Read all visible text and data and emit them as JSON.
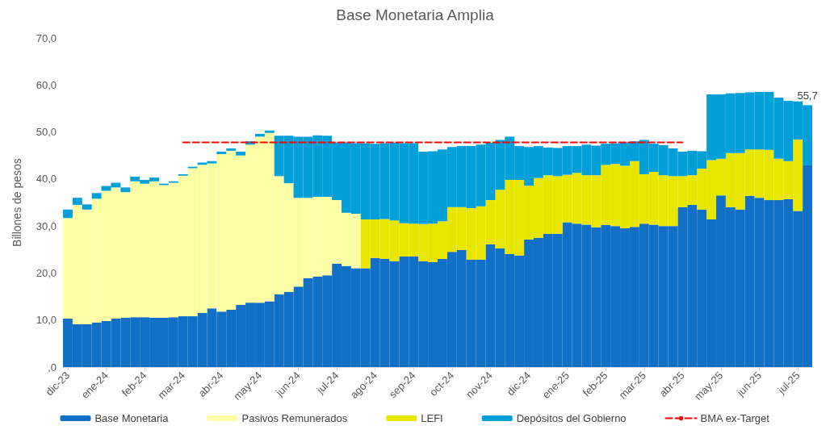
{
  "chart_data": {
    "type": "bar",
    "stacked": true,
    "title": "Base Monetaria Amplia",
    "ylabel": "Billones de pesos",
    "categories": [
      "dic-23",
      null,
      null,
      null,
      "ene-24",
      null,
      null,
      null,
      "feb-24",
      null,
      null,
      null,
      "mar-24",
      null,
      null,
      null,
      "abr-24",
      null,
      null,
      null,
      "may-24",
      null,
      null,
      null,
      "jun-24",
      null,
      null,
      null,
      "jul-24",
      null,
      null,
      null,
      "ago-24",
      null,
      null,
      null,
      "sep-24",
      null,
      null,
      null,
      "oct-24",
      null,
      null,
      null,
      "nov-24",
      null,
      null,
      null,
      "dic-24",
      null,
      null,
      null,
      "ene-25",
      null,
      null,
      null,
      "feb-25",
      null,
      null,
      null,
      "mar-25",
      null,
      null,
      null,
      "abr-25",
      null,
      null,
      null,
      "may-25",
      null,
      null,
      null,
      "jun-25",
      null,
      null,
      null,
      "jul-25",
      null
    ],
    "series": [
      {
        "name": "Base Monetaria",
        "color": "#1170c5",
        "values": [
          10.3,
          9.1,
          9.1,
          9.5,
          9.8,
          10.3,
          10.5,
          10.6,
          10.6,
          10.5,
          10.5,
          10.6,
          10.8,
          10.8,
          11.5,
          12.5,
          11.8,
          12.2,
          13.2,
          13.7,
          13.7,
          14.0,
          15.5,
          16.0,
          17.1,
          18.9,
          19.2,
          19.5,
          22.0,
          21.5,
          21.0,
          21.0,
          23.2,
          23.0,
          22.5,
          23.5,
          23.5,
          22.5,
          22.3,
          23.0,
          24.5,
          24.9,
          22.8,
          22.8,
          26.1,
          25.2,
          24.0,
          23.7,
          27.1,
          27.5,
          28.3,
          28.3,
          30.8,
          30.5,
          30.3,
          29.7,
          30.2,
          30.0,
          29.5,
          29.8,
          30.5,
          30.3,
          30.0,
          30.0,
          34.0,
          34.5,
          33.5,
          31.4,
          36.5,
          34.0,
          33.5,
          36.4,
          36.0,
          35.5,
          35.5,
          35.7,
          33.2,
          42.9
        ]
      },
      {
        "name": "Pasivos Remunerados",
        "color": "#fdfda6",
        "values": [
          21.4,
          25.4,
          24.4,
          26.3,
          27.7,
          27.9,
          26.7,
          28.9,
          28.4,
          29.0,
          28.2,
          28.6,
          29.9,
          31.5,
          31.5,
          30.8,
          33.5,
          33.8,
          31.8,
          33.6,
          35.3,
          35.8,
          25.1,
          23.1,
          18.9,
          17.1,
          17.0,
          16.7,
          13.5,
          11.3,
          11.6,
          0,
          0,
          0,
          0,
          0,
          0,
          0,
          0,
          0,
          0,
          0,
          0,
          0,
          0,
          0,
          0,
          0,
          0,
          0,
          0,
          0,
          0,
          0,
          0,
          0,
          0,
          0,
          0,
          0,
          0,
          0,
          0,
          0,
          0,
          0,
          0,
          0,
          0,
          0,
          0,
          0,
          0,
          0,
          0,
          0,
          0,
          0
        ]
      },
      {
        "name": "LEFI",
        "color": "#e8e600",
        "values": [
          0,
          0,
          0,
          0,
          0,
          0,
          0,
          0,
          0,
          0,
          0,
          0,
          0,
          0,
          0,
          0,
          0,
          0,
          0,
          0,
          0,
          0,
          0,
          0,
          0,
          0,
          0,
          0,
          0,
          0,
          0,
          10.4,
          8.2,
          8.5,
          8.7,
          7.1,
          7.0,
          7.9,
          8.2,
          8.0,
          9.5,
          9.1,
          11.0,
          11.4,
          9.4,
          12.5,
          15.8,
          16.1,
          11.5,
          12.7,
          12.5,
          12.3,
          10.1,
          10.8,
          10.5,
          11.1,
          12.8,
          13.2,
          13.3,
          14.0,
          10.5,
          11.2,
          10.8,
          10.6,
          6.6,
          6.3,
          8.7,
          12.6,
          7.8,
          11.5,
          12.0,
          9.9,
          10.3,
          10.7,
          8.8,
          8.1,
          15.2,
          0
        ]
      },
      {
        "name": "Depósitos del Gobierno",
        "color": "#039fd7",
        "values": [
          1.8,
          1.5,
          1.1,
          1.2,
          1.0,
          1.0,
          1.0,
          1.0,
          0.8,
          0.8,
          0.3,
          0.3,
          0.3,
          0.3,
          0.5,
          0.5,
          0.5,
          0.5,
          0.8,
          0.7,
          0.6,
          0.5,
          8.6,
          10.1,
          13.0,
          13.0,
          13.1,
          13.0,
          12.3,
          15.0,
          15.0,
          16.2,
          16.1,
          16.1,
          16.5,
          17.0,
          17.1,
          15.4,
          15.4,
          15.3,
          12.8,
          13.0,
          13.2,
          13.1,
          12.2,
          10.6,
          9.2,
          7.2,
          8.2,
          6.8,
          5.9,
          6.0,
          6.1,
          5.7,
          6.5,
          6.3,
          4.5,
          4.4,
          5.0,
          4.2,
          7.3,
          6.0,
          6.4,
          5.9,
          5.2,
          5.2,
          3.7,
          14.0,
          13.7,
          12.7,
          12.8,
          12.1,
          12.2,
          12.3,
          13.0,
          12.8,
          8.1,
          12.8
        ]
      },
      {
        "name": "BMA ex-Target",
        "type": "line",
        "color": "#ff0000",
        "line_style": "dashed",
        "marker": "none",
        "values": [
          null,
          null,
          null,
          null,
          null,
          null,
          null,
          null,
          null,
          null,
          null,
          null,
          47.8,
          47.8,
          47.8,
          47.8,
          47.8,
          47.8,
          47.8,
          47.8,
          47.8,
          47.8,
          47.8,
          47.8,
          47.8,
          47.8,
          47.8,
          47.8,
          47.8,
          47.8,
          47.8,
          47.8,
          47.8,
          47.8,
          47.8,
          47.8,
          47.8,
          47.8,
          47.8,
          47.8,
          47.8,
          47.8,
          47.8,
          47.8,
          47.8,
          47.8,
          47.8,
          47.8,
          47.8,
          47.8,
          47.8,
          47.8,
          47.8,
          47.8,
          47.8,
          47.8,
          47.8,
          47.8,
          47.8,
          47.8,
          47.8,
          47.8,
          47.8,
          47.8,
          47.8,
          null,
          null,
          null,
          null,
          null,
          null,
          null,
          null,
          null,
          null,
          null,
          null,
          null
        ]
      }
    ],
    "totals": [
      null,
      null,
      null,
      null,
      null,
      null,
      null,
      null,
      null,
      null,
      null,
      null,
      null,
      null,
      null,
      null,
      null,
      null,
      null,
      null,
      null,
      null,
      null,
      null,
      null,
      null,
      null,
      null,
      null,
      null,
      null,
      null,
      null,
      null,
      null,
      null,
      null,
      null,
      null,
      null,
      null,
      null,
      null,
      null,
      null,
      null,
      null,
      null,
      null,
      null,
      null,
      null,
      null,
      null,
      null,
      null,
      null,
      null,
      null,
      null,
      null,
      null,
      null,
      null,
      null,
      null,
      null,
      null,
      null,
      null,
      null,
      null,
      null,
      null,
      null,
      null,
      null,
      "55,7"
    ],
    "ylim": [
      0,
      70
    ],
    "yticks": [
      {
        "value": 0,
        "label": ",0"
      },
      {
        "value": 10,
        "label": "10,0"
      },
      {
        "value": 20,
        "label": "20,0"
      },
      {
        "value": 30,
        "label": "30,0"
      },
      {
        "value": 40,
        "label": "40,0"
      },
      {
        "value": 50,
        "label": "50,0"
      },
      {
        "value": 60,
        "label": "60,0"
      },
      {
        "value": 70,
        "label": "70,0"
      }
    ],
    "grid": false,
    "legend": "bottom"
  }
}
